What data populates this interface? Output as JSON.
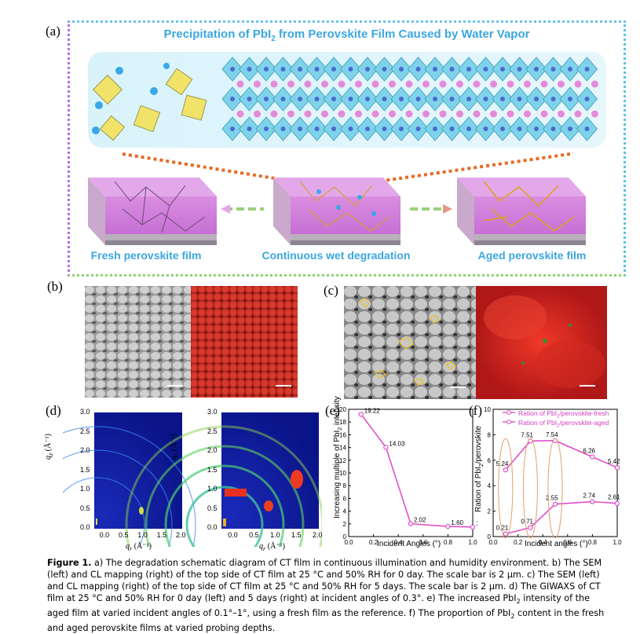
{
  "panels": {
    "a": "(a)",
    "b": "(b)",
    "c": "(c)",
    "d": "(d)",
    "e": "(e)",
    "f": "(f)"
  },
  "schematic": {
    "title": "Precipitation of PbI",
    "title_sub": "2",
    "title_rest": " from Perovskite Film Caused by Water Vapor",
    "film_fresh": "Fresh perovskite film",
    "film_wet": "Continuous wet degradation",
    "film_aged": "Aged perovskite film"
  },
  "giwaxs": {
    "ylabel": "q",
    "ylabel_sub": "z",
    "ylabel_unit": " (Å⁻¹)",
    "xlabel": "q",
    "xlabel_sub": "r",
    "xlabel_unit": " (Å⁻¹)",
    "yticks": [
      "3.0",
      "2.5",
      "2.0",
      "1.5",
      "1.0",
      "0.5",
      "0.0"
    ],
    "xticks": [
      "0.0",
      "0.5",
      "1.0",
      "1.5",
      "2.0"
    ]
  },
  "chart_data": [
    {
      "type": "line",
      "panel": "e",
      "x": [
        0.1,
        0.3,
        0.5,
        0.8,
        1.0
      ],
      "values": [
        19.22,
        14.03,
        2.02,
        1.6,
        1.5
      ],
      "labels": [
        "19.22",
        "14.03",
        "2.02",
        "1.60",
        "1.50"
      ],
      "xlabel": "Incident Angles (°)",
      "ylabel": "Increasing multiple of PbI",
      "ylabel_sub": "2",
      "ylabel_rest": " intensity",
      "xlim": [
        0.0,
        1.0
      ],
      "ylim": [
        0,
        20
      ],
      "xticks": [
        "0.0",
        "0.2",
        "0.4",
        "0.6",
        "0.8",
        "1.0"
      ],
      "yticks": [
        "0",
        "2",
        "4",
        "6",
        "8",
        "10",
        "12",
        "14",
        "16",
        "18",
        "20"
      ],
      "color": "#e04fc8"
    },
    {
      "type": "line",
      "panel": "f",
      "x": [
        0.1,
        0.3,
        0.5,
        0.8,
        1.0
      ],
      "series": [
        {
          "name": "Ration of PbI2/perovskite-fresh",
          "values": [
            5.24,
            7.51,
            7.54,
            6.26,
            5.42
          ],
          "labels": [
            "5.24",
            "7.51",
            "7.54",
            "6.26",
            "5.42"
          ],
          "color": "#e04fc8"
        },
        {
          "name": "Ration of PbI2/perovskite-aged",
          "values": [
            0.21,
            0.71,
            2.55,
            2.74,
            2.61
          ],
          "labels": [
            "0.21",
            "0.71",
            "2.55",
            "2.74",
            "2.61"
          ],
          "color": "#e04fc8"
        }
      ],
      "legend_fresh": "Ration of PbI",
      "legend_fresh_rest": "/perovskite-fresh",
      "legend_aged": "Ration of PbI",
      "legend_aged_rest": "/perovskite-aged",
      "legend_sub": "2",
      "xlabel": "Incident angles (°)",
      "ylabel": "Ration of PbI",
      "ylabel_sub": "2",
      "ylabel_rest": "/perovskite",
      "xlim": [
        0.0,
        1.0
      ],
      "ylim": [
        0,
        10
      ],
      "xticks": [
        "0.0",
        "0.2",
        "0.4",
        "0.6",
        "0.8",
        "1.0"
      ],
      "yticks": [
        "0",
        "2",
        "4",
        "6",
        "8",
        "10"
      ],
      "legend": "top"
    }
  ],
  "caption": {
    "fig": "Figure 1.",
    "text": " a) The degradation schematic diagram of CT film in continuous illumination and humidity environment. b) The SEM (left) and CL mapping (right) of the top side of CT film at 25 °C and 50% RH for 0 day. The scale bar is 2 μm. c) The SEM (left) and CL mapping (right) of the top side of CT film at 25 °C and 50% RH for 5 days. The scale bar is 2 μm. d) The GIWAXS of CT film at 25 °C and 50% RH for 0 day (left) and 5 days (right) at incident angles of 0.3°. e) The increased PbI",
    "sub1": "2",
    "text2": " intensity of the aged film at varied incident angles of 0.1°–1°, using a fresh film as the reference. f) The proportion of PbI",
    "sub2": "2",
    "text3": " content in the fresh and aged perovskite films at varied probing depths."
  }
}
